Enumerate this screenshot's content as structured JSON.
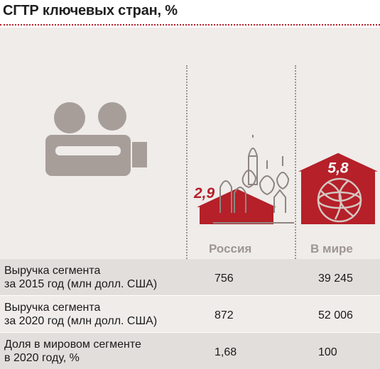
{
  "title": "СГТР ключевых стран, %",
  "columns": [
    "Россия",
    "В мире"
  ],
  "colors": {
    "accent": "#b52029",
    "icon_gray": "#a79e9a",
    "row_dark": "#e2dedb",
    "panel": "#efecea"
  },
  "icons": [
    "film-camera-icon",
    "kremlin-cathedral-icon",
    "globe-icon"
  ],
  "chart_data": {
    "type": "bar",
    "title": "СГТР ключевых стран, %",
    "categories": [
      "Россия",
      "В мире"
    ],
    "values": [
      2.9,
      5.8
    ],
    "value_labels": [
      "2,9",
      "5,8"
    ]
  },
  "table": {
    "rows": [
      {
        "label_line1": "Выручка сегмента",
        "label_line2": "за 2015 год (млн долл. США)",
        "russia": "756",
        "world": "39 245"
      },
      {
        "label_line1": "Выручка сегмента",
        "label_line2": "за 2020 год (млн долл. США)",
        "russia": "872",
        "world": "52 006"
      },
      {
        "label_line1": "Доля в мировом сегменте",
        "label_line2": "в 2020 году, %",
        "russia": "1,68",
        "world": "100"
      }
    ]
  }
}
